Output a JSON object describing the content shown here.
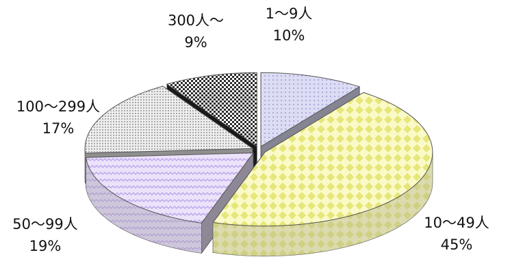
{
  "chart_data": {
    "type": "pie",
    "style": "3d-exploded",
    "title": "",
    "slices": [
      {
        "label": "1～9人",
        "percent_label": "10%",
        "value": 10,
        "color": "#dcdcf4",
        "pattern": "dots"
      },
      {
        "label": "10～49人",
        "percent_label": "45%",
        "value": 45,
        "color": "#fafac8",
        "pattern": "diamonds"
      },
      {
        "label": "50～99人",
        "percent_label": "19%",
        "value": 19,
        "color": "#ece2fa",
        "pattern": "waves"
      },
      {
        "label": "100～299人",
        "percent_label": "17%",
        "value": 17,
        "color": "#eeeeee",
        "pattern": "fine-dots"
      },
      {
        "label": "300人～",
        "percent_label": "9%",
        "value": 9,
        "color": "#2b2b2b",
        "pattern": "checker"
      }
    ]
  }
}
